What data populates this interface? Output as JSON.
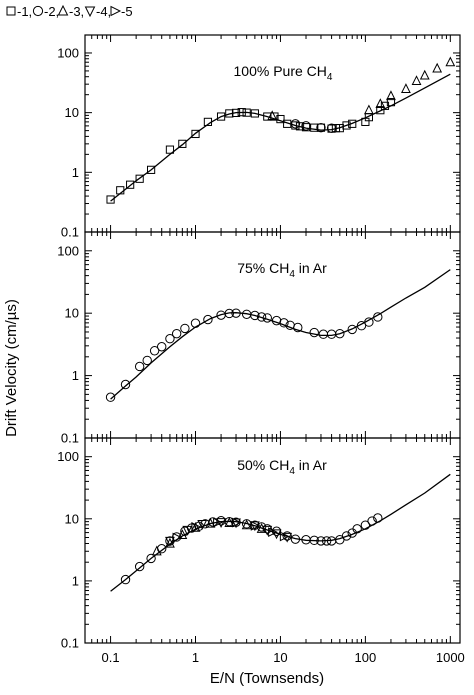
{
  "legend": {
    "entries": [
      {
        "marker": "square",
        "label": "-1,"
      },
      {
        "marker": "circle",
        "label": "-2,"
      },
      {
        "marker": "triangle-up",
        "label": "-3,"
      },
      {
        "marker": "triangle-down",
        "label": "-4,"
      },
      {
        "marker": "triangle-right",
        "label": "-5"
      }
    ]
  },
  "chart_data": [
    {
      "type": "line",
      "title_main": "100% Pure CH",
      "title_sub": "4",
      "title_tail": "",
      "xscale": "log",
      "yscale": "log",
      "xlim": [
        0.05,
        1300
      ],
      "ylim": [
        0.1,
        200
      ],
      "y_ticks": [
        0.1,
        1,
        10,
        100
      ],
      "y_tick_labels": [
        "0.1",
        "1",
        "10",
        "100"
      ],
      "curve": {
        "x": [
          0.1,
          0.15,
          0.2,
          0.3,
          0.5,
          0.7,
          1,
          1.5,
          2,
          2.5,
          3,
          4,
          5,
          7,
          10,
          15,
          20,
          30,
          40,
          50,
          70,
          100,
          150,
          200,
          300,
          500,
          1000
        ],
        "y": [
          0.33,
          0.52,
          0.72,
          1.1,
          2.0,
          2.9,
          4.5,
          6.8,
          8.6,
          9.5,
          10,
          10.1,
          9.7,
          8.6,
          7.3,
          6.1,
          5.5,
          5.1,
          5.2,
          5.6,
          6.6,
          8.2,
          10.7,
          13,
          17.5,
          26,
          44
        ]
      },
      "series": [
        {
          "marker": "square",
          "x": [
            0.1,
            0.13,
            0.17,
            0.22,
            0.3,
            0.5,
            0.7,
            1.0,
            1.4,
            2.0,
            2.5,
            3.0,
            3.5,
            4.0,
            5.0,
            7.0,
            8.5,
            10,
            12,
            15,
            17,
            20,
            25,
            30,
            40,
            45,
            50,
            60,
            70,
            100,
            110,
            150,
            170,
            200
          ],
          "y": [
            0.35,
            0.5,
            0.62,
            0.78,
            1.1,
            2.4,
            3.0,
            4.4,
            7.0,
            8.6,
            9.7,
            9.9,
            10.2,
            10.0,
            9.7,
            8.6,
            8.6,
            7.8,
            6.5,
            6.1,
            5.9,
            5.7,
            5.6,
            5.6,
            5.4,
            5.5,
            5.5,
            6.1,
            6.5,
            7.0,
            8.4,
            11,
            13,
            15
          ]
        },
        {
          "marker": "circle",
          "x": [
            15,
            20,
            30,
            40
          ],
          "y": [
            6.5,
            6.0,
            5.6,
            5.5
          ]
        },
        {
          "marker": "triangle-up",
          "x": [
            8,
            110,
            150,
            200,
            300,
            400,
            500,
            700,
            1000
          ],
          "y": [
            8.8,
            11,
            14,
            19,
            25,
            34,
            42,
            55,
            70
          ]
        },
        {
          "marker": "triangle-down",
          "x": [],
          "y": []
        },
        {
          "marker": "triangle-right",
          "x": [],
          "y": []
        }
      ]
    },
    {
      "type": "line",
      "title_main": "75% CH",
      "title_sub": "4",
      "title_tail": " in Ar",
      "xscale": "log",
      "yscale": "log",
      "xlim": [
        0.05,
        1300
      ],
      "ylim": [
        0.1,
        200
      ],
      "y_ticks": [
        0.1,
        1,
        10,
        100
      ],
      "y_tick_labels": [
        "0.1",
        "1",
        "10",
        "100"
      ],
      "curve": {
        "x": [
          0.1,
          0.15,
          0.2,
          0.3,
          0.5,
          0.7,
          1,
          1.5,
          2,
          2.5,
          3,
          4,
          5,
          7,
          10,
          15,
          20,
          30,
          40,
          50,
          70,
          100,
          150,
          200,
          300,
          500,
          1000
        ],
        "y": [
          0.42,
          0.68,
          0.95,
          1.6,
          2.9,
          4.2,
          6.0,
          8.2,
          9.5,
          10.1,
          10.2,
          9.8,
          9.2,
          8.0,
          6.8,
          5.5,
          4.9,
          4.4,
          4.4,
          4.7,
          5.6,
          7.2,
          9.8,
          12.5,
          17.5,
          26,
          50
        ]
      },
      "series": [
        {
          "marker": "circle",
          "x": [
            0.1,
            0.15,
            0.22,
            0.27,
            0.33,
            0.4,
            0.5,
            0.6,
            0.75,
            1.0,
            1.4,
            2.0,
            2.5,
            3.0,
            4.0,
            5.0,
            6.0,
            7.0,
            9.0,
            11,
            13,
            16,
            25,
            32,
            40,
            50,
            70,
            90,
            110,
            140
          ],
          "y": [
            0.45,
            0.72,
            1.4,
            1.75,
            2.5,
            2.9,
            3.9,
            4.7,
            5.7,
            6.9,
            7.9,
            9.3,
            9.9,
            10,
            9.6,
            9.2,
            8.7,
            8.4,
            7.6,
            7.0,
            6.4,
            5.9,
            4.9,
            4.6,
            4.6,
            4.7,
            5.5,
            6.3,
            7.2,
            8.7
          ]
        },
        {
          "marker": "square",
          "x": [],
          "y": []
        },
        {
          "marker": "triangle-up",
          "x": [],
          "y": []
        },
        {
          "marker": "triangle-down",
          "x": [],
          "y": []
        },
        {
          "marker": "triangle-right",
          "x": [],
          "y": []
        }
      ]
    },
    {
      "type": "line",
      "title_main": "50% CH",
      "title_sub": "4",
      "title_tail": " in Ar",
      "xscale": "log",
      "yscale": "log",
      "xlim": [
        0.05,
        1300
      ],
      "ylim": [
        0.1,
        200
      ],
      "y_ticks": [
        0.1,
        1,
        10,
        100
      ],
      "y_tick_labels": [
        "0.1",
        "1",
        "10",
        "100"
      ],
      "x_ticks": [
        0.1,
        1,
        10,
        100,
        1000
      ],
      "x_tick_labels": [
        "0.1",
        "1",
        "10",
        "100",
        "1000"
      ],
      "curve": {
        "x": [
          0.1,
          0.15,
          0.2,
          0.3,
          0.5,
          0.7,
          1,
          1.5,
          2,
          2.5,
          3,
          4,
          5,
          7,
          10,
          15,
          20,
          30,
          40,
          50,
          70,
          100,
          150,
          200,
          300,
          500,
          1000
        ],
        "y": [
          0.68,
          1.05,
          1.45,
          2.3,
          3.9,
          5.3,
          6.8,
          8.4,
          9.0,
          9.1,
          9.0,
          8.4,
          7.7,
          6.6,
          5.6,
          4.8,
          4.5,
          4.4,
          4.5,
          4.8,
          5.6,
          6.9,
          9.3,
          11.8,
          16.8,
          26,
          52
        ]
      },
      "series": [
        {
          "marker": "circle",
          "x": [
            0.15,
            0.22,
            0.3,
            0.4,
            0.5,
            0.6,
            0.75,
            0.9,
            1.1,
            1.3,
            1.6,
            2.0,
            2.5,
            3.0,
            4.0,
            5.0,
            6.0,
            7.0,
            9.0,
            12,
            15,
            20,
            25,
            30,
            35,
            40,
            50,
            60,
            70,
            80,
            100,
            120,
            140
          ],
          "y": [
            1.05,
            1.7,
            2.3,
            3.3,
            4.4,
            5.1,
            6.3,
            7.1,
            7.6,
            8.3,
            8.9,
            9.3,
            9.0,
            8.8,
            8.3,
            7.9,
            7.4,
            6.9,
            6.3,
            5.3,
            4.7,
            4.6,
            4.5,
            4.4,
            4.4,
            4.4,
            4.6,
            5.3,
            5.9,
            6.9,
            7.9,
            9.2,
            10.3
          ]
        },
        {
          "marker": "triangle-up",
          "x": [
            0.35,
            0.5,
            0.7,
            1.0,
            1.5,
            2.5,
            4.0,
            6.0
          ],
          "y": [
            3.0,
            4.0,
            5.5,
            7.2,
            8.4,
            8.6,
            7.9,
            6.9
          ]
        },
        {
          "marker": "triangle-down",
          "x": [
            0.5,
            0.8,
            1.2,
            2.0,
            3.0,
            5.0,
            7.0,
            9.0,
            12
          ],
          "y": [
            4.4,
            6.6,
            8.2,
            8.8,
            8.7,
            7.8,
            6.6,
            5.8,
            5.1
          ]
        },
        {
          "marker": "triangle-right",
          "x": [
            0.6,
            1.0,
            1.8,
            3.0,
            5.0,
            8.0,
            11
          ],
          "y": [
            5.0,
            7.4,
            8.7,
            8.7,
            7.7,
            6.1,
            5.2
          ]
        },
        {
          "marker": "square",
          "x": [],
          "y": []
        }
      ]
    }
  ],
  "axes": {
    "xlabel": "E/N  (Townsends)",
    "ylabel": "Drift Velocity  (cm/µs)"
  }
}
